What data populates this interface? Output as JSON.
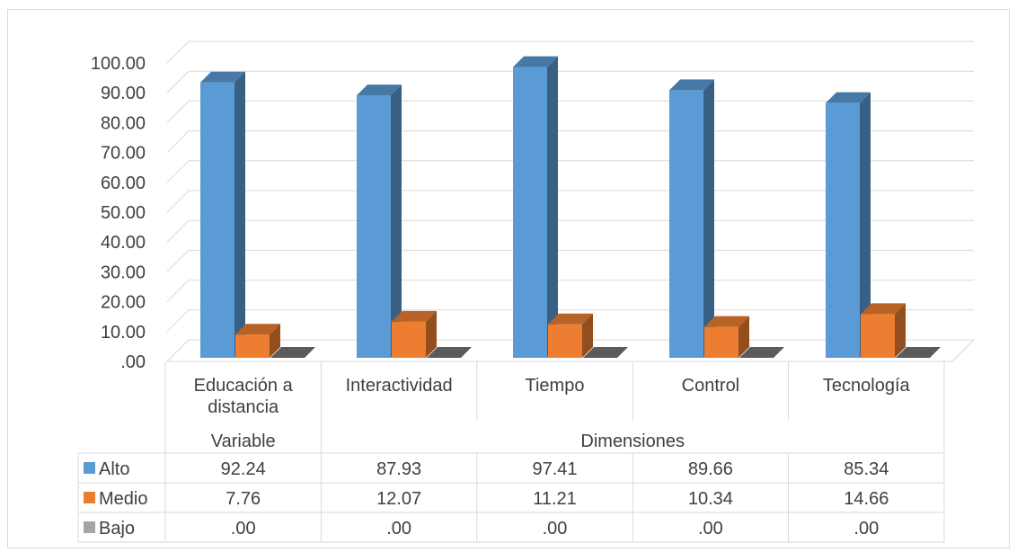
{
  "chart_data": {
    "type": "bar",
    "categories": [
      "Educación a distancia",
      "Interactividad",
      "Tiempo",
      "Control",
      "Tecnología"
    ],
    "category_lines": [
      [
        "Educación a",
        "distancia"
      ],
      [
        "Interactividad"
      ],
      [
        "Tiempo"
      ],
      [
        "Control"
      ],
      [
        "Tecnología"
      ]
    ],
    "groups": [
      {
        "label": "Variable",
        "span": [
          0,
          0
        ]
      },
      {
        "label": "Dimensiones",
        "span": [
          1,
          4
        ]
      }
    ],
    "series": [
      {
        "name": "Alto",
        "color": "#5b9bd5",
        "values": [
          92.24,
          87.93,
          97.41,
          89.66,
          85.34
        ],
        "labels": [
          "92.24",
          "87.93",
          "97.41",
          "89.66",
          "85.34"
        ]
      },
      {
        "name": "Medio",
        "color": "#ed7d31",
        "values": [
          7.76,
          12.07,
          11.21,
          10.34,
          14.66
        ],
        "labels": [
          "7.76",
          "12.07",
          "11.21",
          "10.34",
          "14.66"
        ]
      },
      {
        "name": "Bajo",
        "color": "#a5a5a5",
        "values": [
          0,
          0,
          0,
          0,
          0
        ],
        "labels": [
          ".00",
          ".00",
          ".00",
          ".00",
          ".00"
        ]
      }
    ],
    "ylim": [
      0,
      100
    ],
    "yticks": [
      ".00",
      "10.00",
      "20.00",
      "30.00",
      "40.00",
      "50.00",
      "60.00",
      "70.00",
      "80.00",
      "90.00",
      "100.00"
    ],
    "grid": true,
    "legend": "data-table",
    "style": "3d-column"
  }
}
